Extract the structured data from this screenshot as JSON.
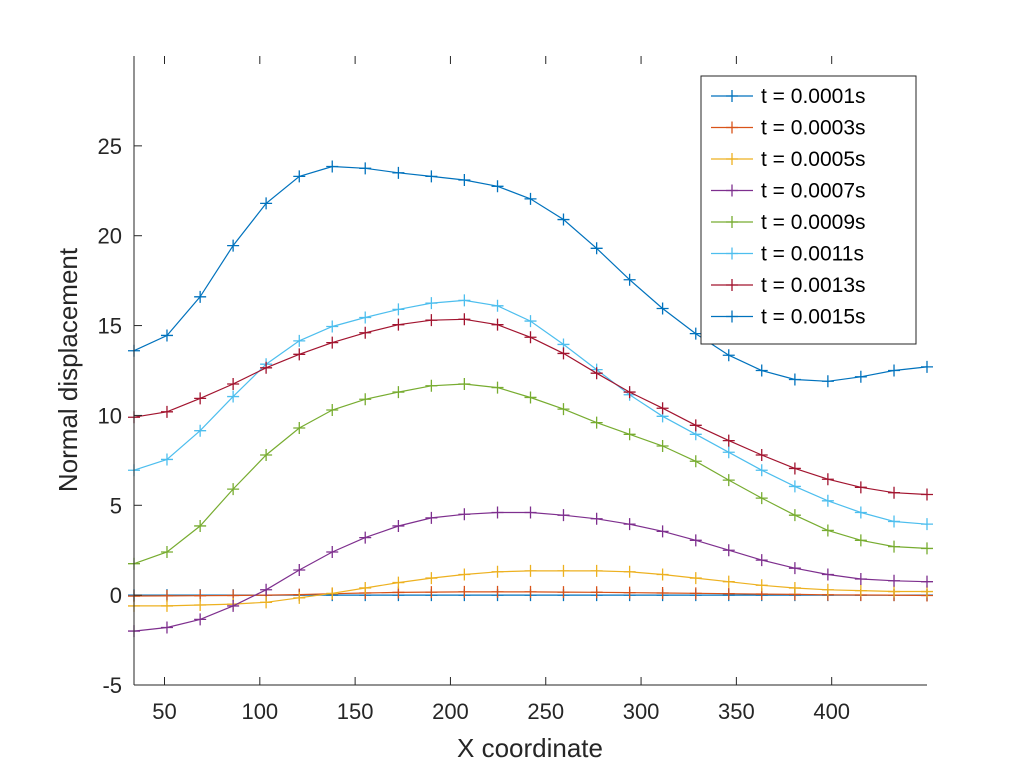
{
  "chart_data": {
    "type": "line",
    "xlabel": "X coordinate",
    "ylabel": "Normal displacement",
    "xlim": [
      34,
      450
    ],
    "ylim": [
      -5,
      30
    ],
    "xticks": [
      50,
      100,
      150,
      200,
      250,
      300,
      350,
      400
    ],
    "yticks": [
      -5,
      0,
      5,
      10,
      15,
      20,
      25
    ],
    "grid": false,
    "legend_position": "top-right",
    "x": [
      34,
      51.3,
      68.7,
      86,
      103.3,
      120.7,
      138,
      155.3,
      172.7,
      190,
      207.3,
      224.7,
      242,
      259.3,
      276.7,
      294,
      311.3,
      328.7,
      346,
      363.3,
      380.7,
      398,
      415.3,
      432.7,
      450
    ],
    "series": [
      {
        "name": "t = 0.0001s",
        "color": "#0072BD",
        "values": [
          0,
          0,
          0,
          0,
          0,
          0,
          0,
          0,
          0,
          0,
          0,
          0,
          0,
          0,
          0,
          0,
          0,
          0,
          0,
          0,
          0,
          0,
          0,
          0,
          0
        ]
      },
      {
        "name": "t = 0.0003s",
        "color": "#D95319",
        "values": [
          -0.05,
          -0.04,
          -0.03,
          -0.02,
          0,
          0.03,
          0.08,
          0.12,
          0.15,
          0.17,
          0.18,
          0.18,
          0.18,
          0.17,
          0.16,
          0.14,
          0.12,
          0.1,
          0.08,
          0.06,
          0.04,
          0.02,
          0.01,
          0,
          -0.02
        ]
      },
      {
        "name": "t = 0.0005s",
        "color": "#EDB120",
        "values": [
          -0.6,
          -0.6,
          -0.55,
          -0.5,
          -0.4,
          -0.15,
          0.1,
          0.4,
          0.7,
          0.95,
          1.15,
          1.3,
          1.35,
          1.35,
          1.35,
          1.3,
          1.15,
          0.95,
          0.75,
          0.55,
          0.4,
          0.3,
          0.25,
          0.2,
          0.2
        ]
      },
      {
        "name": "t = 0.0007s",
        "color": "#7E2F8E",
        "values": [
          -2.0,
          -1.8,
          -1.35,
          -0.6,
          0.3,
          1.4,
          2.4,
          3.2,
          3.85,
          4.3,
          4.5,
          4.6,
          4.6,
          4.45,
          4.25,
          3.95,
          3.55,
          3.05,
          2.5,
          1.95,
          1.5,
          1.15,
          0.9,
          0.8,
          0.75
        ]
      },
      {
        "name": "t = 0.0009s",
        "color": "#77AC30",
        "values": [
          1.75,
          2.4,
          3.85,
          5.9,
          7.8,
          9.3,
          10.3,
          10.9,
          11.3,
          11.65,
          11.75,
          11.55,
          11.0,
          10.35,
          9.6,
          8.95,
          8.3,
          7.45,
          6.4,
          5.4,
          4.45,
          3.6,
          3.05,
          2.7,
          2.6
        ]
      },
      {
        "name": "t = 0.0011s",
        "color": "#4DBEEE",
        "values": [
          6.95,
          7.55,
          9.15,
          11.05,
          12.85,
          14.15,
          14.95,
          15.45,
          15.9,
          16.25,
          16.4,
          16.1,
          15.25,
          13.95,
          12.55,
          11.15,
          9.95,
          8.95,
          7.95,
          6.95,
          6.05,
          5.25,
          4.6,
          4.1,
          3.95
        ]
      },
      {
        "name": "t = 0.0013s",
        "color": "#A2142F",
        "values": [
          9.9,
          10.2,
          10.95,
          11.75,
          12.65,
          13.4,
          14.05,
          14.6,
          15.05,
          15.3,
          15.35,
          15.05,
          14.35,
          13.45,
          12.35,
          11.3,
          10.4,
          9.45,
          8.6,
          7.8,
          7.05,
          6.45,
          6.0,
          5.7,
          5.6
        ]
      },
      {
        "name": "t = 0.0015s",
        "color": "#0072BD",
        "values": [
          13.6,
          14.45,
          16.6,
          19.45,
          21.8,
          23.3,
          23.85,
          23.75,
          23.5,
          23.3,
          23.1,
          22.75,
          22.05,
          20.9,
          19.3,
          17.55,
          15.95,
          14.55,
          13.35,
          12.5,
          12.0,
          11.9,
          12.15,
          12.5,
          12.7
        ]
      }
    ]
  }
}
